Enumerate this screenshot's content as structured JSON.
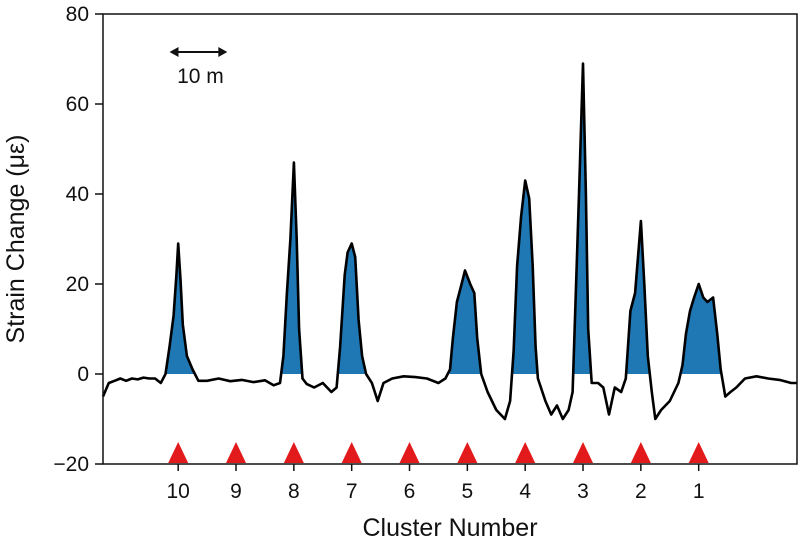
{
  "chart_data": {
    "type": "line",
    "xlabel": "Cluster Number",
    "ylabel": "Strain Change (με)",
    "ylim": [
      -20,
      80
    ],
    "yticks": [
      -20,
      0,
      20,
      40,
      60,
      80
    ],
    "xlim": [
      0,
      120
    ],
    "grid": false,
    "scale_bar": {
      "label": "10 m",
      "length": 10
    },
    "clusters": [
      {
        "label": "10",
        "x": 13,
        "peak": 29
      },
      {
        "label": "9",
        "x": 23,
        "peak": null
      },
      {
        "label": "8",
        "x": 33,
        "peak": 47
      },
      {
        "label": "7",
        "x": 43,
        "peak": 29
      },
      {
        "label": "6",
        "x": 53,
        "peak": null
      },
      {
        "label": "5",
        "x": 63,
        "peak": 23
      },
      {
        "label": "4",
        "x": 73,
        "peak": 43
      },
      {
        "label": "3",
        "x": 83,
        "peak": 69
      },
      {
        "label": "2",
        "x": 93,
        "peak": 34
      },
      {
        "label": "1",
        "x": 103,
        "peak": 20
      }
    ],
    "series": [
      {
        "line_color": "#000000",
        "fill_color": "#1f77b4",
        "points": [
          [
            0,
            -5
          ],
          [
            1,
            -2
          ],
          [
            2,
            -1.5
          ],
          [
            3,
            -1
          ],
          [
            4,
            -1.5
          ],
          [
            5,
            -1
          ],
          [
            6,
            -1.2
          ],
          [
            7,
            -0.8
          ],
          [
            8,
            -1
          ],
          [
            9,
            -1
          ],
          [
            10,
            -2
          ],
          [
            10.8,
            0
          ],
          [
            11.5,
            6
          ],
          [
            12.2,
            13
          ],
          [
            12.7,
            22
          ],
          [
            13,
            29
          ],
          [
            13.4,
            21
          ],
          [
            13.8,
            11
          ],
          [
            14.5,
            4
          ],
          [
            15.5,
            1
          ],
          [
            16.5,
            -1.5
          ],
          [
            18,
            -1.5
          ],
          [
            20,
            -1
          ],
          [
            22,
            -1.6
          ],
          [
            24,
            -1.3
          ],
          [
            26,
            -1.8
          ],
          [
            28,
            -1.4
          ],
          [
            29.5,
            -2.5
          ],
          [
            30.6,
            -2
          ],
          [
            31.2,
            4
          ],
          [
            31.8,
            18
          ],
          [
            32.4,
            30
          ],
          [
            33,
            47
          ],
          [
            33.5,
            30
          ],
          [
            33.9,
            10
          ],
          [
            34.5,
            -1
          ],
          [
            35.2,
            -2.2
          ],
          [
            36.5,
            -3
          ],
          [
            38,
            -2
          ],
          [
            39.5,
            -4
          ],
          [
            40.4,
            -3
          ],
          [
            41,
            6
          ],
          [
            41.8,
            22
          ],
          [
            42.3,
            27
          ],
          [
            43,
            29
          ],
          [
            43.6,
            26
          ],
          [
            44.2,
            12
          ],
          [
            44.8,
            4
          ],
          [
            45.5,
            0
          ],
          [
            46.5,
            -2
          ],
          [
            47.5,
            -6
          ],
          [
            48.5,
            -2
          ],
          [
            50,
            -1
          ],
          [
            52,
            -0.5
          ],
          [
            54,
            -0.7
          ],
          [
            56,
            -1
          ],
          [
            58,
            -2
          ],
          [
            59.2,
            -1
          ],
          [
            60,
            1
          ],
          [
            60.5,
            8
          ],
          [
            61.2,
            16
          ],
          [
            62,
            20
          ],
          [
            62.6,
            23
          ],
          [
            63.5,
            20
          ],
          [
            64.2,
            18
          ],
          [
            64.7,
            8
          ],
          [
            65.4,
            0
          ],
          [
            66.5,
            -4
          ],
          [
            68,
            -8
          ],
          [
            69.5,
            -10
          ],
          [
            70.4,
            -6
          ],
          [
            71,
            5
          ],
          [
            71.6,
            24
          ],
          [
            72.3,
            35
          ],
          [
            73,
            43
          ],
          [
            73.7,
            39
          ],
          [
            74.3,
            24
          ],
          [
            74.8,
            6
          ],
          [
            75.2,
            -1
          ],
          [
            76.5,
            -6
          ],
          [
            77.5,
            -9
          ],
          [
            78.5,
            -7
          ],
          [
            79.5,
            -10
          ],
          [
            80.5,
            -8
          ],
          [
            81.2,
            -4
          ],
          [
            81.8,
            20
          ],
          [
            82.3,
            40
          ],
          [
            83,
            69
          ],
          [
            83.5,
            40
          ],
          [
            83.9,
            10
          ],
          [
            84.5,
            -2
          ],
          [
            85.6,
            -2
          ],
          [
            86.5,
            -3
          ],
          [
            87.5,
            -9
          ],
          [
            88.5,
            -3
          ],
          [
            89.6,
            -4
          ],
          [
            90.4,
            -1
          ],
          [
            91.2,
            14
          ],
          [
            92,
            18
          ],
          [
            93,
            34
          ],
          [
            93.6,
            20
          ],
          [
            94.2,
            4
          ],
          [
            94.9,
            -4
          ],
          [
            95.5,
            -10
          ],
          [
            96.5,
            -8
          ],
          [
            98,
            -6
          ],
          [
            99.5,
            -2
          ],
          [
            100.2,
            2
          ],
          [
            100.8,
            9
          ],
          [
            101.5,
            14
          ],
          [
            102.2,
            17
          ],
          [
            103,
            20
          ],
          [
            103.8,
            17
          ],
          [
            104.5,
            16
          ],
          [
            105.5,
            17
          ],
          [
            106.2,
            9
          ],
          [
            106.8,
            1
          ],
          [
            107.6,
            -5
          ],
          [
            108.5,
            -4
          ],
          [
            109.5,
            -3
          ],
          [
            111,
            -1
          ],
          [
            113,
            -0.5
          ],
          [
            115,
            -1
          ],
          [
            117,
            -1.3
          ],
          [
            119,
            -2
          ],
          [
            120,
            -2
          ]
        ]
      }
    ]
  }
}
